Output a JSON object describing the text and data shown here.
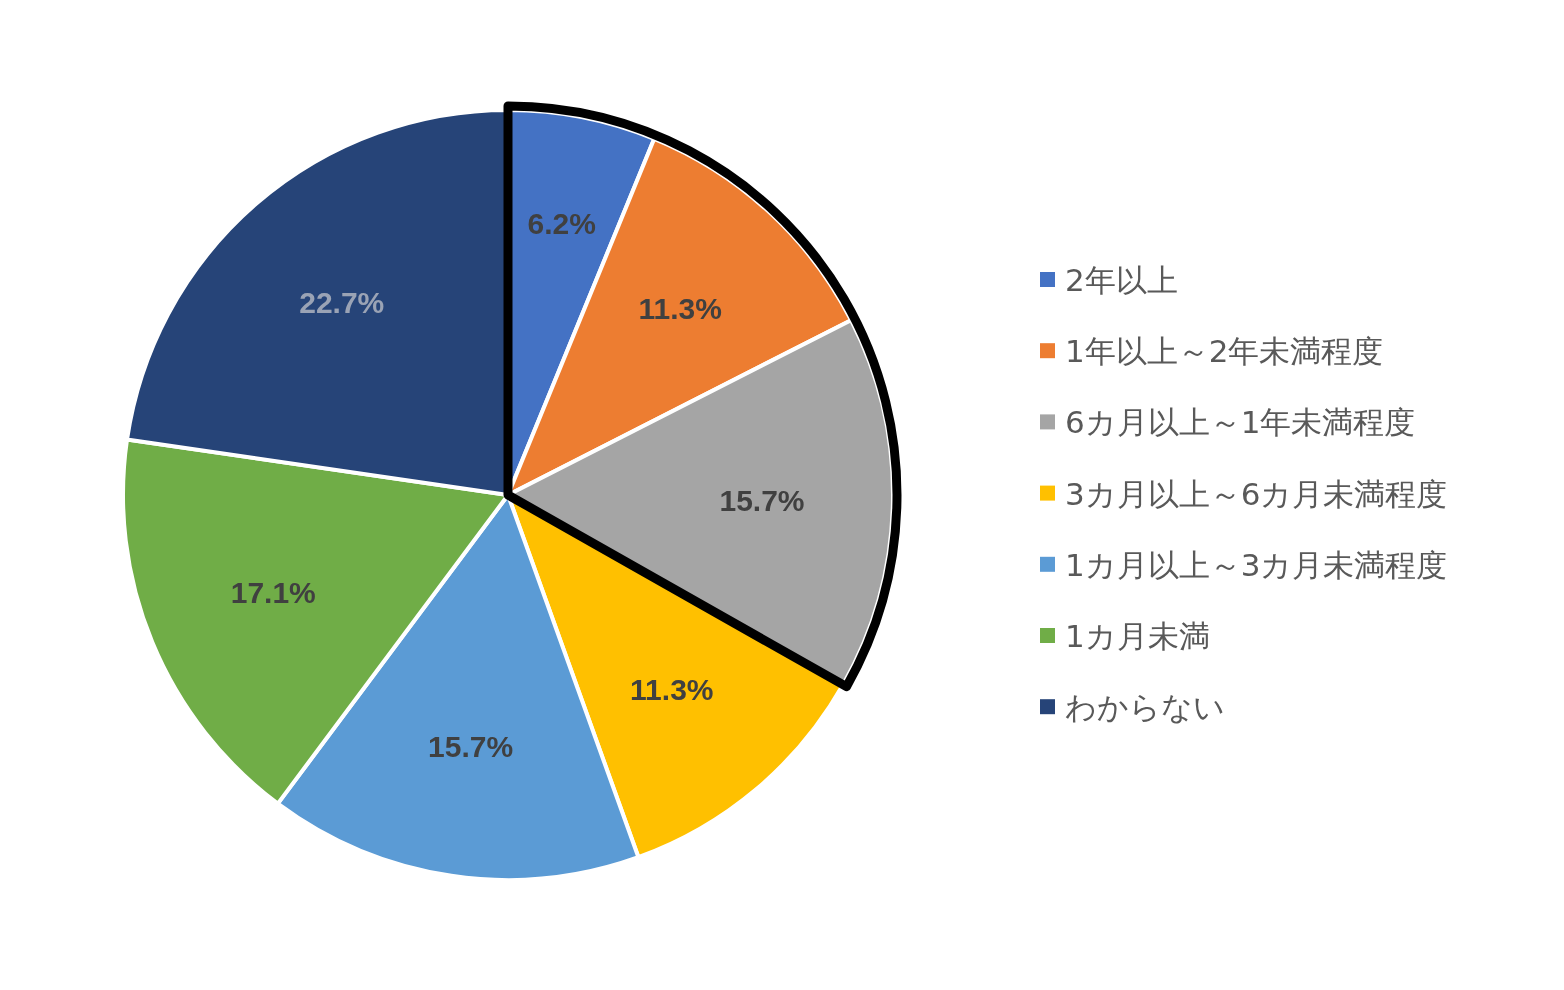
{
  "chart_data": {
    "type": "pie",
    "categories": [
      "2年以上",
      "1年以上～2年未満程度",
      "6カ月以上～1年未満程度",
      "3カ月以上～6カ月未満程度",
      "1カ月以上～3カ月未満程度",
      "1カ月未満",
      "わからない"
    ],
    "values": [
      6.2,
      11.3,
      15.7,
      11.3,
      15.7,
      17.1,
      22.7
    ],
    "colors": [
      "#4472c4",
      "#ed7d31",
      "#a5a5a5",
      "#ffc000",
      "#5b9bd5",
      "#70ad47",
      "#264478"
    ],
    "value_labels": [
      "6.2%",
      "11.3%",
      "15.7%",
      "11.3%",
      "15.7%",
      "17.1%",
      "22.7%"
    ],
    "legend": "right"
  }
}
